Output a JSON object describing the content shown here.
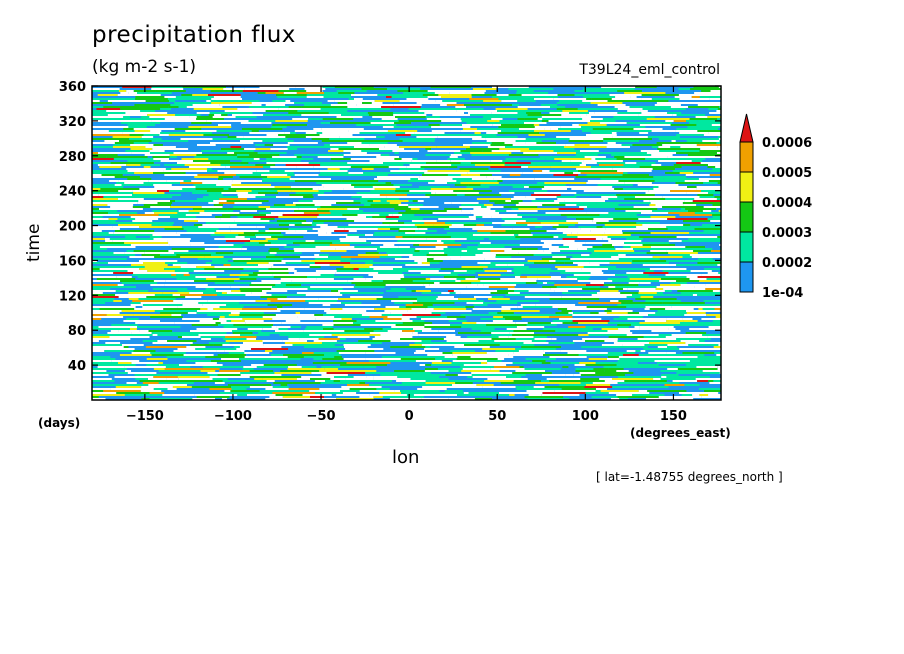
{
  "chart_data": {
    "type": "heatmap",
    "title": "precipitation flux",
    "units": "(kg m-2 s-1)",
    "run_label": "T39L24_eml_control",
    "xlabel": "lon",
    "ylabel": "time",
    "x_units": "(degrees_east)",
    "y_units": "(days)",
    "annotation": "[ lat=-1.48755 degrees_north ]",
    "xlim": [
      -180,
      177
    ],
    "ylim": [
      0,
      360
    ],
    "x_ticks": [
      -150,
      -100,
      -50,
      0,
      50,
      100,
      150
    ],
    "x_tick_labels": [
      "−150",
      "−100",
      "−50",
      "0",
      "50",
      "100",
      "150"
    ],
    "y_ticks": [
      40,
      80,
      120,
      160,
      200,
      240,
      280,
      320,
      360
    ],
    "y_tick_labels": [
      "40",
      "80",
      "120",
      "160",
      "200",
      "240",
      "280",
      "320",
      "360"
    ],
    "colorbar": {
      "levels": [
        "1e-04",
        "0.0002",
        "0.0003",
        "0.0004",
        "0.0005",
        "0.0006"
      ],
      "colors": [
        "#ffffff",
        "#1e96f0",
        "#00e8a0",
        "#14c814",
        "#f0f014",
        "#f0a000",
        "#dc1414"
      ]
    }
  }
}
